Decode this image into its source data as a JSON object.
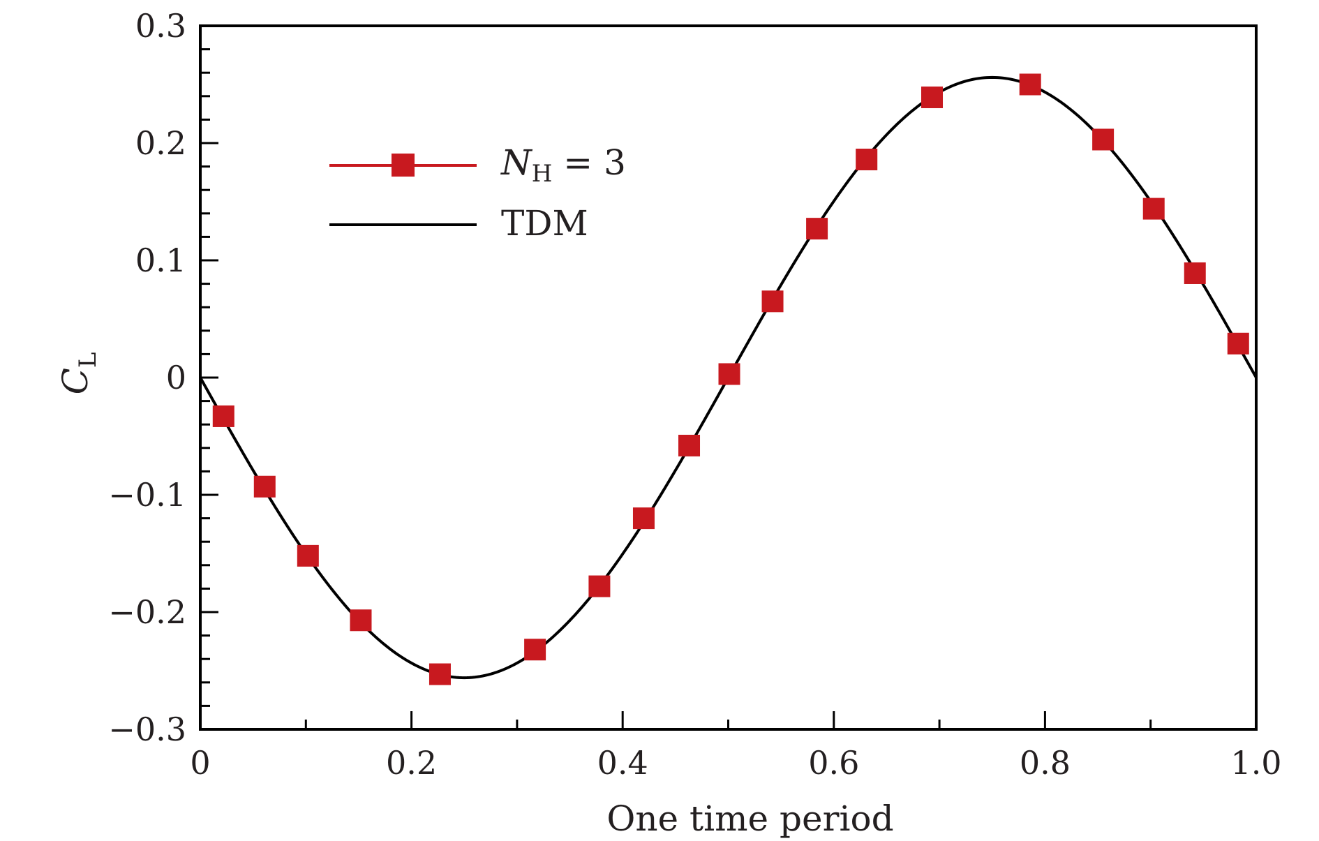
{
  "chart_data": {
    "type": "line",
    "title": "",
    "xlabel": "One time period",
    "ylabel": "C",
    "ylabel_subscript": "L",
    "xlim": [
      0,
      1.0
    ],
    "ylim": [
      -0.3,
      0.3
    ],
    "x_ticks": [
      0,
      0.2,
      0.4,
      0.6,
      0.8,
      1.0
    ],
    "x_tick_labels": [
      "0",
      "0.2",
      "0.4",
      "0.6",
      "0.8",
      "1.0"
    ],
    "y_ticks": [
      -0.3,
      -0.2,
      -0.1,
      0,
      0.1,
      0.2,
      0.3
    ],
    "y_tick_labels": [
      "−0.3",
      "−0.2",
      "−0.1",
      "0",
      "0.1",
      "0.2",
      "0.3"
    ],
    "grid": false,
    "legend_position": "top-left",
    "series": [
      {
        "legend_label": "N",
        "legend_subscript": "H",
        "legend_suffix": " = 3",
        "color": "#c8191f",
        "marker": "square",
        "style": "markers",
        "x": [
          0.022,
          0.061,
          0.102,
          0.152,
          0.227,
          0.317,
          0.378,
          0.42,
          0.463,
          0.501,
          0.542,
          0.584,
          0.631,
          0.693,
          0.786,
          0.855,
          0.903,
          0.942,
          0.983
        ],
        "y": [
          -0.033,
          -0.093,
          -0.152,
          -0.207,
          -0.253,
          -0.232,
          -0.178,
          -0.12,
          -0.058,
          0.003,
          0.065,
          0.127,
          0.186,
          0.239,
          0.25,
          0.203,
          0.144,
          0.089,
          0.029
        ]
      },
      {
        "legend_label": "TDM",
        "color": "#000000",
        "style": "line",
        "amplitude": 0.256,
        "x": [
          0,
          0.05,
          0.1,
          0.15,
          0.2,
          0.25,
          0.3,
          0.35,
          0.4,
          0.45,
          0.5,
          0.55,
          0.6,
          0.65,
          0.7,
          0.75,
          0.8,
          0.85,
          0.9,
          0.95,
          1.0
        ],
        "y": [
          0,
          -0.079,
          -0.15,
          -0.207,
          -0.243,
          -0.256,
          -0.243,
          -0.207,
          -0.15,
          -0.079,
          0,
          0.079,
          0.15,
          0.207,
          0.243,
          0.256,
          0.243,
          0.207,
          0.15,
          0.079,
          0
        ]
      }
    ]
  }
}
